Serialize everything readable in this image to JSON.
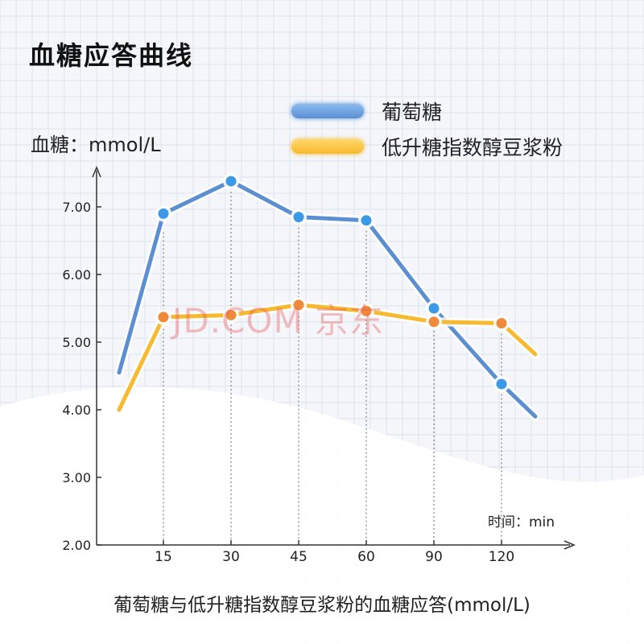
{
  "title": "血糖应答曲线",
  "y_axis_label": "血糖：mmol/L",
  "x_axis_unit_label": "时间：min",
  "caption": "葡萄糖与低升糖指数醇豆浆粉的血糖应答(mmol/L)",
  "watermark": "JD.COM 京东",
  "colors": {
    "glucose_line": "#5b8fd2",
    "glucose_point": "#3b9ae8",
    "soy_line": "#f7b92e",
    "soy_point": "#ef8a3a",
    "wave_fill": "#ffffff"
  },
  "chart_data": {
    "type": "line",
    "title": "血糖应答曲线",
    "xlabel": "时间：min",
    "ylabel": "血糖：mmol/L",
    "categories": [
      "15",
      "30",
      "45",
      "60",
      "90",
      "120"
    ],
    "yticks": [
      "2.00",
      "3.00",
      "4.00",
      "5.00",
      "6.00",
      "7.00"
    ],
    "ylim": [
      2,
      7.4
    ],
    "grid": false,
    "legend_position": "top-right",
    "series": [
      {
        "name": "葡萄糖",
        "color": "#5b8fd2",
        "values": [
          6.9,
          7.38,
          6.85,
          6.8,
          5.5,
          4.38
        ],
        "start_value": 4.55,
        "end_value": 3.9
      },
      {
        "name": "低升糖指数醇豆浆粉",
        "color": "#f7b92e",
        "values": [
          5.37,
          5.4,
          5.55,
          5.46,
          5.3,
          5.28
        ],
        "start_value": 4.0,
        "end_value": 4.82
      }
    ]
  }
}
